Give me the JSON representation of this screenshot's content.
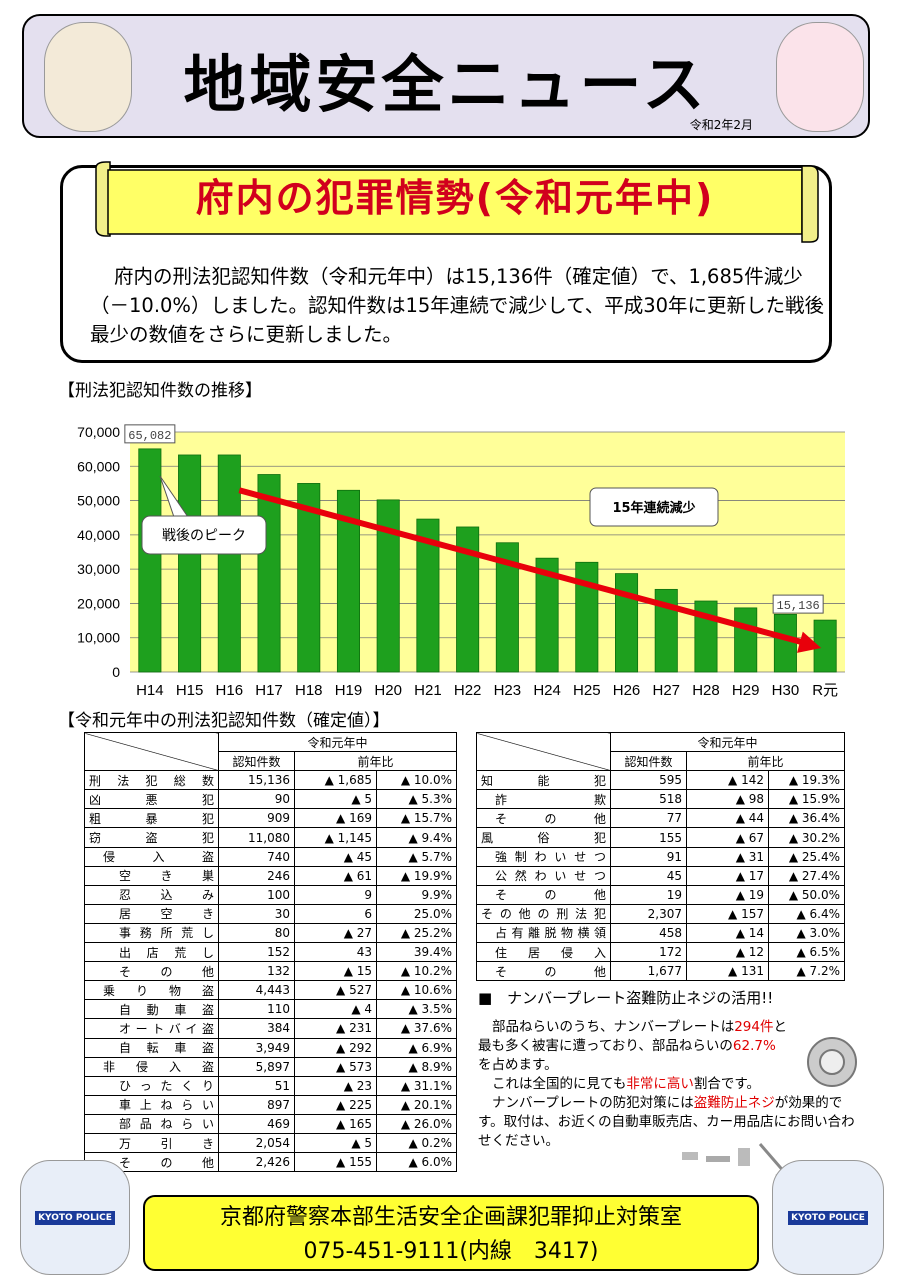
{
  "header": {
    "title": "地域安全ニュース",
    "date": "令和2年2月"
  },
  "section": {
    "title": "府内の犯罪情勢(令和元年中)",
    "body": "府内の刑法犯認知件数（令和元年中）は15,136件（確定値）で、1,685件減少（－10.0%）しました。認知件数は15年連続で減少して、平成30年に更新した戦後最少の数値をさらに更新しました。"
  },
  "chart_heading": "【刑法犯認知件数の推移】",
  "chart_data": {
    "type": "bar",
    "categories": [
      "H14",
      "H15",
      "H16",
      "H17",
      "H18",
      "H19",
      "H20",
      "H21",
      "H22",
      "H23",
      "H24",
      "H25",
      "H26",
      "H27",
      "H28",
      "H29",
      "H30",
      "R元"
    ],
    "values": [
      65082,
      63300,
      63300,
      57600,
      55000,
      53000,
      50200,
      44600,
      42300,
      37700,
      33200,
      32000,
      28700,
      24100,
      20700,
      18700,
      16800,
      15136
    ],
    "ylim": [
      0,
      70000
    ],
    "yticks": [
      "0",
      "10,000",
      "20,000",
      "30,000",
      "40,000",
      "50,000",
      "60,000",
      "70,000"
    ],
    "annotations": {
      "first": "65,082",
      "last": "15,136",
      "peak": "戦後のピーク",
      "trend": "15年連続減少"
    },
    "colors": {
      "bar": "#1ea01e",
      "plot_bg": "#ffff99",
      "trend": "#e8000b"
    }
  },
  "table_heading": "【令和元年中の刑法犯認知件数（確定値）】",
  "table_headers": {
    "group": "令和元年中",
    "count": "認知件数",
    "yoy": "前年比"
  },
  "table_left": [
    {
      "level": 0,
      "label": "刑法犯総数",
      "count": "15,136",
      "diff": "▲ 1,685",
      "pct": "▲ 10.0%"
    },
    {
      "level": 0,
      "label": "凶悪犯",
      "count": "90",
      "diff": "▲ 5",
      "pct": "▲ 5.3%"
    },
    {
      "level": 0,
      "label": "粗暴犯",
      "count": "909",
      "diff": "▲ 169",
      "pct": "▲ 15.7%"
    },
    {
      "level": 0,
      "label": "窃盗犯",
      "count": "11,080",
      "diff": "▲ 1,145",
      "pct": "▲ 9.4%"
    },
    {
      "level": 1,
      "label": "侵入盗",
      "count": "740",
      "diff": "▲ 45",
      "pct": "▲ 5.7%"
    },
    {
      "level": 2,
      "label": "空き巣",
      "count": "246",
      "diff": "▲ 61",
      "pct": "▲ 19.9%"
    },
    {
      "level": 2,
      "label": "忍込み",
      "count": "100",
      "diff": "9",
      "pct": "9.9%"
    },
    {
      "level": 2,
      "label": "居空き",
      "count": "30",
      "diff": "6",
      "pct": "25.0%"
    },
    {
      "level": 2,
      "label": "事務所荒し",
      "count": "80",
      "diff": "▲ 27",
      "pct": "▲ 25.2%"
    },
    {
      "level": 2,
      "label": "出店荒し",
      "count": "152",
      "diff": "43",
      "pct": "39.4%"
    },
    {
      "level": 2,
      "label": "その他",
      "count": "132",
      "diff": "▲ 15",
      "pct": "▲ 10.2%"
    },
    {
      "level": 1,
      "label": "乗り物盗",
      "count": "4,443",
      "diff": "▲ 527",
      "pct": "▲ 10.6%"
    },
    {
      "level": 2,
      "label": "自動車盗",
      "count": "110",
      "diff": "▲ 4",
      "pct": "▲ 3.5%"
    },
    {
      "level": 2,
      "label": "オートバイ盗",
      "count": "384",
      "diff": "▲ 231",
      "pct": "▲ 37.6%"
    },
    {
      "level": 2,
      "label": "自転車盗",
      "count": "3,949",
      "diff": "▲ 292",
      "pct": "▲ 6.9%"
    },
    {
      "level": 1,
      "label": "非侵入盗",
      "count": "5,897",
      "diff": "▲ 573",
      "pct": "▲ 8.9%"
    },
    {
      "level": 2,
      "label": "ひったくり",
      "count": "51",
      "diff": "▲ 23",
      "pct": "▲ 31.1%"
    },
    {
      "level": 2,
      "label": "車上ねらい",
      "count": "897",
      "diff": "▲ 225",
      "pct": "▲ 20.1%"
    },
    {
      "level": 2,
      "label": "部品ねらい",
      "count": "469",
      "diff": "▲ 165",
      "pct": "▲ 26.0%"
    },
    {
      "level": 2,
      "label": "万引き",
      "count": "2,054",
      "diff": "▲ 5",
      "pct": "▲ 0.2%"
    },
    {
      "level": 2,
      "label": "その他",
      "count": "2,426",
      "diff": "▲ 155",
      "pct": "▲ 6.0%"
    }
  ],
  "table_right": [
    {
      "level": 0,
      "label": "知能犯",
      "count": "595",
      "diff": "▲ 142",
      "pct": "▲ 19.3%"
    },
    {
      "level": 1,
      "label": "詐欺",
      "count": "518",
      "diff": "▲ 98",
      "pct": "▲ 15.9%"
    },
    {
      "level": 1,
      "label": "その他",
      "count": "77",
      "diff": "▲ 44",
      "pct": "▲ 36.4%"
    },
    {
      "level": 0,
      "label": "風俗犯",
      "count": "155",
      "diff": "▲ 67",
      "pct": "▲ 30.2%"
    },
    {
      "level": 1,
      "label": "強制わいせつ",
      "count": "91",
      "diff": "▲ 31",
      "pct": "▲ 25.4%"
    },
    {
      "level": 1,
      "label": "公然わいせつ",
      "count": "45",
      "diff": "▲ 17",
      "pct": "▲ 27.4%"
    },
    {
      "level": 1,
      "label": "その他",
      "count": "19",
      "diff": "▲ 19",
      "pct": "▲ 50.0%"
    },
    {
      "level": 0,
      "label": "その他の刑法犯",
      "count": "2,307",
      "diff": "▲ 157",
      "pct": "▲ 6.4%"
    },
    {
      "level": 1,
      "label": "占有離脱物横領",
      "count": "458",
      "diff": "▲ 14",
      "pct": "▲ 3.0%"
    },
    {
      "level": 1,
      "label": "住居侵入",
      "count": "172",
      "diff": "▲ 12",
      "pct": "▲ 6.5%"
    },
    {
      "level": 1,
      "label": "その他",
      "count": "1,677",
      "diff": "▲ 131",
      "pct": "▲ 7.2%"
    }
  ],
  "plate": {
    "heading": "■　ナンバープレート盗難防止ネジの活用!!",
    "p1a": "部品ねらいのうち、ナンバープレートは",
    "p1b": "294件",
    "p1c": "と最も多く被害に遭っており、部品ねらいの",
    "p1d": "62.7%",
    "p1e": "を占めます。",
    "p2a": "これは全国的に見ても",
    "p2b": "非常に高い",
    "p2c": "割合です。",
    "p3a": "ナンバープレートの防犯対策には",
    "p3b": "盗難防止ネジ",
    "p3c": "が効果的です。取付は、お近くの自動車販売店、カー用品店にお問い合わせください。"
  },
  "footer": {
    "line1": "京都府警察本部生活安全企画課犯罪抑止対策室",
    "line2": "075-451-9111(内線　3417)"
  },
  "mascot_text": "KYOTO POLICE"
}
